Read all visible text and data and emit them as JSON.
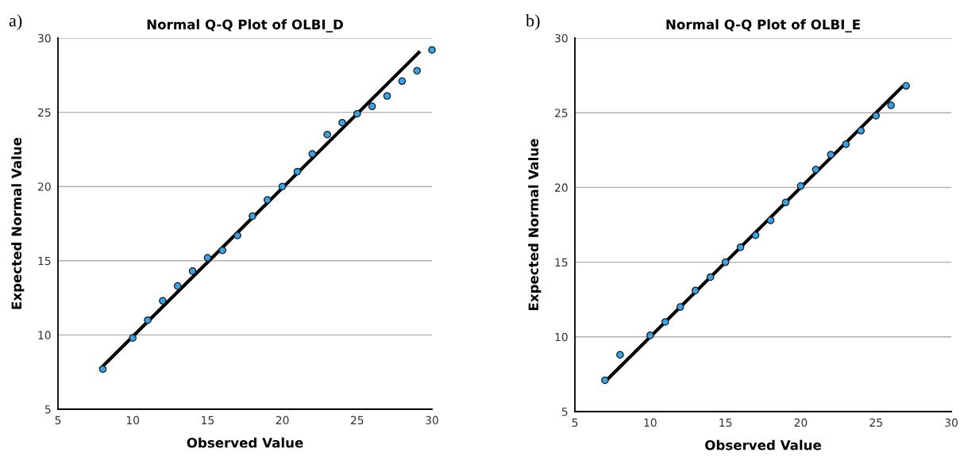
{
  "chart_data": [
    {
      "type": "scatter",
      "title": "Normal Q-Q Plot of OLBI_D",
      "xlabel": "Observed Value",
      "ylabel": "Expected Normal Value",
      "annotations": [
        "a)"
      ],
      "xlim": [
        5,
        30
      ],
      "ylim": [
        5,
        30
      ],
      "xticks": [
        5,
        10,
        15,
        20,
        25,
        30
      ],
      "yticks": [
        5,
        10,
        15,
        20,
        25,
        30
      ],
      "grid": "y",
      "legend": false,
      "series": [
        {
          "marker": "circle",
          "color": "#3aa3e8",
          "x": [
            8,
            10,
            11,
            12,
            13,
            14,
            15,
            16,
            17,
            18,
            19,
            20,
            21,
            22,
            23,
            24,
            25,
            26,
            27,
            28,
            29,
            30
          ],
          "values": [
            7.7,
            9.8,
            11.0,
            12.3,
            13.3,
            14.3,
            15.2,
            15.7,
            16.7,
            18.0,
            19.1,
            20.0,
            21.0,
            22.2,
            23.5,
            24.3,
            24.9,
            25.4,
            26.1,
            27.1,
            27.8,
            29.2
          ]
        },
        {
          "type": "line",
          "color": "#000000",
          "line_style": "solid",
          "x": [
            7.8,
            29.2
          ],
          "values": [
            7.7,
            29.1
          ]
        }
      ]
    },
    {
      "type": "scatter",
      "title": "Normal Q-Q Plot of OLBI_E",
      "xlabel": "Observed Value",
      "ylabel": "Expected Normal Value",
      "annotations": [
        "b)"
      ],
      "xlim": [
        5,
        30
      ],
      "ylim": [
        5,
        30
      ],
      "xticks": [
        5,
        10,
        15,
        20,
        25,
        30
      ],
      "yticks": [
        5,
        10,
        15,
        20,
        25,
        30
      ],
      "grid": "y",
      "legend": false,
      "series": [
        {
          "marker": "circle",
          "color": "#3aa3e8",
          "x": [
            7,
            8,
            10,
            11,
            12,
            13,
            14,
            15,
            16,
            17,
            18,
            19,
            20,
            21,
            22,
            23,
            24,
            25,
            26,
            27
          ],
          "values": [
            7.1,
            8.8,
            10.1,
            11.0,
            12.0,
            13.1,
            14.0,
            15.0,
            16.0,
            16.8,
            17.8,
            19.0,
            20.1,
            21.2,
            22.2,
            22.9,
            23.8,
            24.8,
            25.5,
            26.8
          ]
        },
        {
          "type": "line",
          "color": "#000000",
          "line_style": "solid",
          "x": [
            7.1,
            26.8
          ],
          "values": [
            7.1,
            26.8
          ]
        }
      ]
    }
  ]
}
